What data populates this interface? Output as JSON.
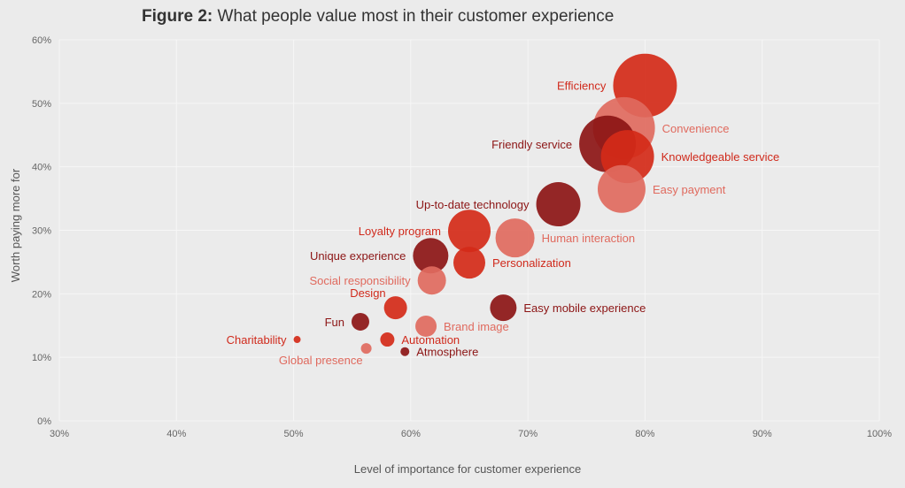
{
  "chart_data": {
    "type": "bubble",
    "title_bold": "Figure 2:",
    "title": "What people value most in their customer experience",
    "xlabel": "Level of importance for customer experience",
    "ylabel": "Worth paying more for",
    "xlim": [
      30,
      100
    ],
    "ylim": [
      0,
      60
    ],
    "xticks": [
      "30%",
      "40%",
      "50%",
      "60%",
      "70%",
      "80%",
      "90%",
      "100%"
    ],
    "yticks": [
      "0%",
      "10%",
      "20%",
      "30%",
      "40%",
      "50%",
      "60%"
    ],
    "grid": true,
    "colors": {
      "dark": "#8c1515",
      "red": "#d42a18",
      "light": "#e06a5e",
      "background": "#ebebeb"
    },
    "points": [
      {
        "name": "Efficiency",
        "x": 80.0,
        "y": 52.8,
        "size": 36,
        "color": "red",
        "label_side": "left"
      },
      {
        "name": "Convenience",
        "x": 78.2,
        "y": 46.1,
        "size": 35,
        "color": "light",
        "label_side": "right"
      },
      {
        "name": "Friendly service",
        "x": 76.8,
        "y": 43.6,
        "size": 32,
        "color": "dark",
        "label_side": "left"
      },
      {
        "name": "Knowledgeable service",
        "x": 78.5,
        "y": 41.6,
        "size": 30,
        "color": "red",
        "label_side": "right"
      },
      {
        "name": "Easy payment",
        "x": 78.0,
        "y": 36.5,
        "size": 27,
        "color": "light",
        "label_side": "right"
      },
      {
        "name": "Up-to-date technology",
        "x": 72.6,
        "y": 34.1,
        "size": 25,
        "color": "dark",
        "label_side": "left"
      },
      {
        "name": "Human interaction",
        "x": 68.9,
        "y": 28.8,
        "size": 22,
        "color": "light",
        "label_side": "right"
      },
      {
        "name": "Loyalty program",
        "x": 65.0,
        "y": 29.9,
        "size": 24,
        "color": "red",
        "label_side": "left"
      },
      {
        "name": "Personalization",
        "x": 65.0,
        "y": 24.9,
        "size": 18,
        "color": "red",
        "label_side": "right"
      },
      {
        "name": "Unique experience",
        "x": 61.7,
        "y": 26.0,
        "size": 20,
        "color": "dark",
        "label_side": "left"
      },
      {
        "name": "Social responsibility",
        "x": 61.8,
        "y": 22.1,
        "size": 16,
        "color": "light",
        "label_side": "left"
      },
      {
        "name": "Design",
        "x": 58.7,
        "y": 17.8,
        "size": 13,
        "color": "red",
        "label_side": "upleft"
      },
      {
        "name": "Easy mobile experience",
        "x": 67.9,
        "y": 17.8,
        "size": 15,
        "color": "dark",
        "label_side": "right"
      },
      {
        "name": "Fun",
        "x": 55.7,
        "y": 15.6,
        "size": 10,
        "color": "dark",
        "label_side": "left"
      },
      {
        "name": "Brand image",
        "x": 61.3,
        "y": 14.9,
        "size": 12,
        "color": "light",
        "label_side": "right"
      },
      {
        "name": "Automation",
        "x": 58.0,
        "y": 12.8,
        "size": 8,
        "color": "red",
        "label_side": "right"
      },
      {
        "name": "Charitability",
        "x": 50.3,
        "y": 12.8,
        "size": 4,
        "color": "red",
        "label_side": "left"
      },
      {
        "name": "Global presence",
        "x": 56.2,
        "y": 11.4,
        "size": 6,
        "color": "light",
        "label_side": "downleft"
      },
      {
        "name": "Atmosphere",
        "x": 59.5,
        "y": 10.9,
        "size": 5,
        "color": "dark",
        "label_side": "right"
      }
    ]
  }
}
